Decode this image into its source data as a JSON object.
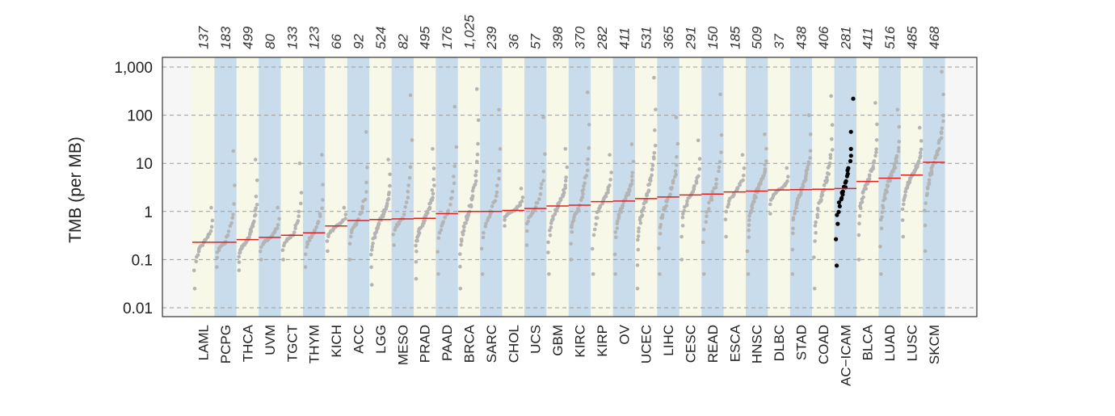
{
  "chart_data": {
    "type": "scatter",
    "title": "",
    "xlabel": "",
    "ylabel": "TMB (per MB)",
    "y_scale": "log",
    "ylim": [
      0.01,
      1000
    ],
    "yticks": [
      {
        "value": 0.01,
        "label": "0.01"
      },
      {
        "value": 0.1,
        "label": "0.1"
      },
      {
        "value": 1,
        "label": "1"
      },
      {
        "value": 10,
        "label": "10"
      },
      {
        "value": 100,
        "label": "100"
      },
      {
        "value": 1000,
        "label": "1,000"
      }
    ],
    "grid": "horizontal-dashed",
    "highlight_color": "#000000",
    "point_color": "#b4b4b4",
    "median_color": "#e02020",
    "band_colors": [
      "#f7f8e8",
      "#c9dceb"
    ],
    "categories": [
      {
        "name": "LAML",
        "count": "137",
        "median": 0.23,
        "min": 0.025,
        "max": 1.2
      },
      {
        "name": "PCPG",
        "count": "183",
        "median": 0.23,
        "min": 0.07,
        "max": 18
      },
      {
        "name": "THCA",
        "count": "499",
        "median": 0.26,
        "min": 0.06,
        "max": 12
      },
      {
        "name": "UVM",
        "count": "80",
        "median": 0.29,
        "min": 0.1,
        "max": 1.2
      },
      {
        "name": "TGCT",
        "count": "133",
        "median": 0.32,
        "min": 0.1,
        "max": 10
      },
      {
        "name": "THYM",
        "count": "123",
        "median": 0.36,
        "min": 0.07,
        "max": 15
      },
      {
        "name": "KICH",
        "count": "66",
        "median": 0.5,
        "min": 0.15,
        "max": 1.2
      },
      {
        "name": "ACC",
        "count": "92",
        "median": 0.65,
        "min": 0.1,
        "max": 45
      },
      {
        "name": "LGG",
        "count": "524",
        "median": 0.68,
        "min": 0.03,
        "max": 12
      },
      {
        "name": "MESO",
        "count": "82",
        "median": 0.7,
        "min": 0.2,
        "max": 260
      },
      {
        "name": "PRAD",
        "count": "495",
        "median": 0.72,
        "min": 0.04,
        "max": 20
      },
      {
        "name": "PAAD",
        "count": "176",
        "median": 0.9,
        "min": 0.05,
        "max": 150
      },
      {
        "name": "BRCA",
        "count": "1,025",
        "median": 1.0,
        "min": 0.025,
        "max": 350
      },
      {
        "name": "SARC",
        "count": "239",
        "median": 1.0,
        "min": 0.05,
        "max": 130
      },
      {
        "name": "CHOL",
        "count": "36",
        "median": 1.05,
        "min": 0.5,
        "max": 3
      },
      {
        "name": "UCS",
        "count": "57",
        "median": 1.15,
        "min": 0.2,
        "max": 90
      },
      {
        "name": "GBM",
        "count": "398",
        "median": 1.3,
        "min": 0.05,
        "max": 20
      },
      {
        "name": "KIRC",
        "count": "370",
        "median": 1.35,
        "min": 0.1,
        "max": 300
      },
      {
        "name": "KIRP",
        "count": "282",
        "median": 1.6,
        "min": 0.05,
        "max": 15
      },
      {
        "name": "OV",
        "count": "411",
        "median": 1.65,
        "min": 0.05,
        "max": 25
      },
      {
        "name": "UCEC",
        "count": "531",
        "median": 1.85,
        "min": 0.025,
        "max": 600
      },
      {
        "name": "LIHC",
        "count": "365",
        "median": 2.0,
        "min": 0.05,
        "max": 90
      },
      {
        "name": "CESC",
        "count": "291",
        "median": 2.2,
        "min": 0.1,
        "max": 30
      },
      {
        "name": "READ",
        "count": "150",
        "median": 2.3,
        "min": 0.05,
        "max": 270
      },
      {
        "name": "ESCA",
        "count": "185",
        "median": 2.55,
        "min": 0.3,
        "max": 15
      },
      {
        "name": "HNSC",
        "count": "509",
        "median": 2.65,
        "min": 0.05,
        "max": 40
      },
      {
        "name": "DLBC",
        "count": "37",
        "median": 2.8,
        "min": 0.9,
        "max": 8
      },
      {
        "name": "STAD",
        "count": "438",
        "median": 2.85,
        "min": 0.05,
        "max": 100
      },
      {
        "name": "COAD",
        "count": "406",
        "median": 2.9,
        "min": 0.025,
        "max": 250
      },
      {
        "name": "AC−ICAM",
        "count": "281",
        "median": 3.0,
        "min": 0.075,
        "max": 220,
        "highlight": true
      },
      {
        "name": "BLCA",
        "count": "411",
        "median": 4.2,
        "min": 0.1,
        "max": 180
      },
      {
        "name": "LUAD",
        "count": "516",
        "median": 4.9,
        "min": 0.05,
        "max": 130
      },
      {
        "name": "LUSC",
        "count": "485",
        "median": 5.7,
        "min": 0.3,
        "max": 55
      },
      {
        "name": "SKCM",
        "count": "468",
        "median": 10.5,
        "min": 0.15,
        "max": 800
      }
    ]
  }
}
